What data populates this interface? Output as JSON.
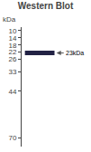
{
  "chart_data": {
    "type": "band",
    "title": "Western Blot",
    "ylabel": "kDa",
    "values": [
      22.5
    ],
    "color": "#222244",
    "annotations": [
      {
        "text": "23kDa",
        "y": 22.5
      }
    ],
    "ylim": [
      75,
      8
    ],
    "yticks": [
      70,
      44,
      33,
      26,
      22,
      18,
      14,
      10
    ],
    "grid": false
  }
}
